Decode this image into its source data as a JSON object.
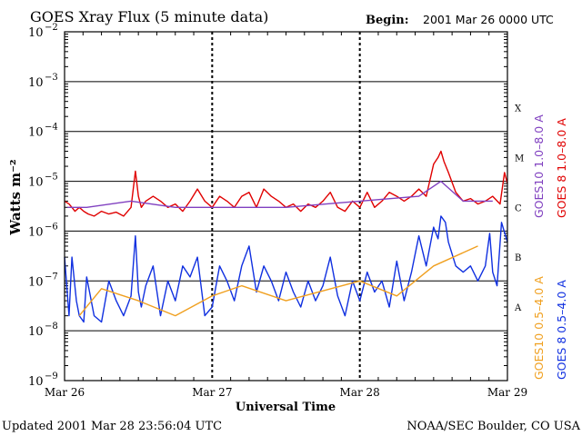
{
  "header": {
    "title": "GOES Xray Flux (5 minute data)",
    "begin_label": "Begin:",
    "begin_value": "2001 Mar 26 0000 UTC"
  },
  "footer": {
    "updated": "Updated 2001 Mar 28 23:56:04 UTC",
    "source": "NOAA/SEC Boulder, CO USA"
  },
  "chart_data": {
    "type": "line",
    "title": "GOES Xray Flux (5 minute data)",
    "xlabel": "Universal Time",
    "ylabel": "Watts m⁻²",
    "y_scale": "log",
    "ylim": [
      1e-09,
      0.01
    ],
    "x_ticks": [
      "Mar 26",
      "Mar 27",
      "Mar 28",
      "Mar 29"
    ],
    "y_ticks": [
      {
        "base": "10",
        "exp": "−2",
        "value": 0.01
      },
      {
        "base": "10",
        "exp": "−3",
        "value": 0.001
      },
      {
        "base": "10",
        "exp": "−4",
        "value": 0.0001
      },
      {
        "base": "10",
        "exp": "−5",
        "value": 1e-05
      },
      {
        "base": "10",
        "exp": "−6",
        "value": 1e-06
      },
      {
        "base": "10",
        "exp": "−7",
        "value": 1e-07
      },
      {
        "base": "10",
        "exp": "−8",
        "value": 1e-08
      },
      {
        "base": "10",
        "exp": "−9",
        "value": 1e-09
      }
    ],
    "flare_classes": [
      {
        "label": "X",
        "value": 0.0003
      },
      {
        "label": "M",
        "value": 3e-05
      },
      {
        "label": "C",
        "value": 3e-06
      },
      {
        "label": "B",
        "value": 3e-07
      },
      {
        "label": "A",
        "value": 3e-08
      }
    ],
    "grid": true,
    "legend": "right",
    "series": [
      {
        "name": "GOES10 1.0–8.0 A",
        "color": "#8040c0",
        "x_days": [
          0.02,
          0.15,
          0.45,
          0.75,
          1.0,
          1.5,
          2.0,
          2.4,
          2.55,
          2.7,
          2.9
        ],
        "values": [
          3e-06,
          3e-06,
          4e-06,
          3e-06,
          3e-06,
          3e-06,
          4e-06,
          5e-06,
          1e-05,
          4e-06,
          4e-06
        ]
      },
      {
        "name": "GOES 8 1.0–8.0 A",
        "color": "#e00000",
        "x_days": [
          0.0,
          0.03,
          0.05,
          0.07,
          0.1,
          0.13,
          0.16,
          0.2,
          0.25,
          0.3,
          0.35,
          0.4,
          0.45,
          0.48,
          0.5,
          0.52,
          0.55,
          0.6,
          0.65,
          0.7,
          0.75,
          0.8,
          0.85,
          0.9,
          0.95,
          1.0,
          1.05,
          1.1,
          1.15,
          1.2,
          1.25,
          1.3,
          1.35,
          1.4,
          1.45,
          1.5,
          1.55,
          1.6,
          1.65,
          1.7,
          1.75,
          1.8,
          1.85,
          1.9,
          1.95,
          2.0,
          2.05,
          2.1,
          2.15,
          2.2,
          2.25,
          2.3,
          2.35,
          2.4,
          2.45,
          2.5,
          2.53,
          2.55,
          2.57,
          2.6,
          2.65,
          2.7,
          2.75,
          2.8,
          2.85,
          2.9,
          2.95,
          2.98,
          3.0
        ],
        "values": [
          4e-06,
          3.5e-06,
          3e-06,
          2.5e-06,
          3e-06,
          2.5e-06,
          2.2e-06,
          2e-06,
          2.5e-06,
          2.2e-06,
          2.4e-06,
          2e-06,
          3e-06,
          1.6e-05,
          5e-06,
          3e-06,
          4e-06,
          5e-06,
          4e-06,
          3e-06,
          3.5e-06,
          2.5e-06,
          4e-06,
          7e-06,
          4e-06,
          3e-06,
          5e-06,
          4e-06,
          3e-06,
          5e-06,
          6e-06,
          3e-06,
          7e-06,
          5e-06,
          4e-06,
          3e-06,
          3.5e-06,
          2.5e-06,
          3.5e-06,
          3e-06,
          4e-06,
          6e-06,
          3e-06,
          2.5e-06,
          4e-06,
          3e-06,
          6e-06,
          3e-06,
          4e-06,
          6e-06,
          5e-06,
          4e-06,
          5e-06,
          7e-06,
          5e-06,
          2.2e-05,
          3e-05,
          4e-05,
          2.5e-05,
          1.5e-05,
          6e-06,
          4e-06,
          4.5e-06,
          3.5e-06,
          4e-06,
          5e-06,
          3.5e-06,
          1.5e-05,
          9e-06
        ]
      },
      {
        "name": "GOES10 0.5–4.0 A",
        "color": "#f0a020",
        "x_days": [
          0.1,
          0.25,
          0.5,
          0.75,
          1.0,
          1.2,
          1.5,
          2.0,
          2.25,
          2.5,
          2.8
        ],
        "values": [
          2e-08,
          7e-08,
          4e-08,
          2e-08,
          5e-08,
          8e-08,
          4e-08,
          1e-07,
          5e-08,
          2e-07,
          5e-07
        ]
      },
      {
        "name": "GOES 8 0.5–4.0 A",
        "color": "#1030e0",
        "x_days": [
          0.0,
          0.03,
          0.05,
          0.08,
          0.1,
          0.13,
          0.15,
          0.2,
          0.25,
          0.3,
          0.35,
          0.4,
          0.45,
          0.48,
          0.5,
          0.52,
          0.55,
          0.6,
          0.65,
          0.7,
          0.75,
          0.8,
          0.85,
          0.9,
          0.95,
          1.0,
          1.05,
          1.1,
          1.15,
          1.2,
          1.25,
          1.3,
          1.35,
          1.4,
          1.45,
          1.5,
          1.55,
          1.6,
          1.65,
          1.7,
          1.75,
          1.8,
          1.85,
          1.9,
          1.95,
          2.0,
          2.05,
          2.1,
          2.15,
          2.2,
          2.25,
          2.3,
          2.35,
          2.4,
          2.45,
          2.5,
          2.53,
          2.55,
          2.58,
          2.6,
          2.65,
          2.7,
          2.75,
          2.8,
          2.85,
          2.88,
          2.9,
          2.93,
          2.96,
          3.0
        ],
        "values": [
          3e-07,
          2e-08,
          3e-07,
          4e-08,
          2e-08,
          1.5e-08,
          1.2e-07,
          2e-08,
          1.5e-08,
          1e-07,
          4e-08,
          2e-08,
          5e-08,
          8e-07,
          6e-08,
          3e-08,
          8e-08,
          2e-07,
          2e-08,
          1e-07,
          4e-08,
          2e-07,
          1.2e-07,
          3e-07,
          2e-08,
          3e-08,
          2e-07,
          1e-07,
          4e-08,
          2e-07,
          5e-07,
          6e-08,
          2e-07,
          1e-07,
          4e-08,
          1.5e-07,
          6e-08,
          3e-08,
          1e-07,
          4e-08,
          8e-08,
          3e-07,
          5e-08,
          2e-08,
          1e-07,
          4e-08,
          1.5e-07,
          6e-08,
          1e-07,
          3e-08,
          2.5e-07,
          4e-08,
          1.5e-07,
          8e-07,
          2e-07,
          1.2e-06,
          7e-07,
          2e-06,
          1.5e-06,
          6e-07,
          2e-07,
          1.5e-07,
          2e-07,
          1e-07,
          2e-07,
          9e-07,
          1.5e-07,
          8e-08,
          1.5e-06,
          6e-07
        ]
      }
    ]
  }
}
